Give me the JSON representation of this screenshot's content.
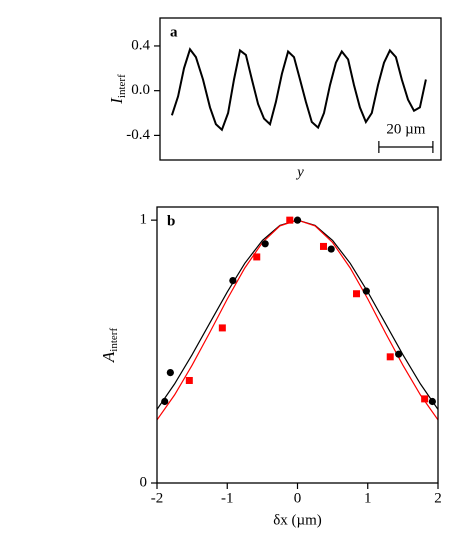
{
  "chart_data": [
    {
      "type": "line",
      "panel_label": "a",
      "xlabel": "y",
      "ylabel": {
        "text": "I",
        "subscript": "interf"
      },
      "xlim": [
        0,
        104
      ],
      "ylim": [
        -0.62,
        0.65
      ],
      "yticks": [
        0.4,
        {
          "value": 0,
          "label": "0.0"
        },
        -0.4
      ],
      "scale_bar": {
        "label": "20 µm",
        "x": [
          81,
          101
        ]
      },
      "series": [
        {
          "color": "#000000",
          "mode": "line",
          "x": [
            4.4,
            6.7,
            8.9,
            11.1,
            13.3,
            15.9,
            18.5,
            20.7,
            22.9,
            25.2,
            27.4,
            29.6,
            31.8,
            34.0,
            36.3,
            38.5,
            40.7,
            42.9,
            45.1,
            47.4,
            49.6,
            51.8,
            54.0,
            56.2,
            58.5,
            60.7,
            62.9,
            65.1,
            67.3,
            69.6,
            71.8,
            74.0,
            76.2,
            78.4,
            80.7,
            82.9,
            85.1,
            87.3,
            89.5,
            91.8,
            94.0,
            96.2,
            98.4
          ],
          "values": [
            -0.22,
            -0.05,
            0.2,
            0.37,
            0.3,
            0.1,
            -0.15,
            -0.3,
            -0.35,
            -0.2,
            0.1,
            0.36,
            0.32,
            0.1,
            -0.12,
            -0.25,
            -0.3,
            -0.1,
            0.15,
            0.35,
            0.3,
            0.1,
            -0.1,
            -0.28,
            -0.33,
            -0.2,
            0.05,
            0.25,
            0.35,
            0.28,
            0.05,
            -0.15,
            -0.28,
            -0.2,
            0.05,
            0.25,
            0.36,
            0.3,
            0.1,
            -0.08,
            -0.18,
            -0.15,
            0.1
          ]
        }
      ]
    },
    {
      "type": "scatter",
      "panel_label": "b",
      "xlabel": "δx (µm)",
      "ylabel": {
        "text": "A",
        "subscript": "interf"
      },
      "xlim": [
        -2,
        2
      ],
      "ylim": [
        0,
        1.05
      ],
      "xticks": [
        -2,
        -1,
        0,
        1,
        2
      ],
      "yticks": [
        0,
        1
      ],
      "series": [
        {
          "color": "#000000",
          "mode": "markers",
          "marker": "circle",
          "x": [
            -1.89,
            -1.81,
            -0.92,
            -0.46,
            0,
            0.48,
            0.98,
            1.44,
            1.92
          ],
          "values": [
            0.31,
            0.42,
            0.77,
            0.91,
            1.0,
            0.89,
            0.73,
            0.49,
            0.31
          ]
        },
        {
          "color": "#ff0000",
          "mode": "markers",
          "marker": "square",
          "x": [
            -1.54,
            -1.07,
            -0.58,
            -0.11,
            0.37,
            0.84,
            1.32,
            1.81
          ],
          "values": [
            0.39,
            0.59,
            0.86,
            1.0,
            0.9,
            0.72,
            0.48,
            0.32
          ]
        },
        {
          "color": "#000000",
          "mode": "line",
          "x": [
            -2,
            -1.75,
            -1.5,
            -1.25,
            -1,
            -0.75,
            -0.5,
            -0.25,
            0,
            0.25,
            0.5,
            0.75,
            1,
            1.25,
            1.5,
            1.75,
            2
          ],
          "values": [
            0.28,
            0.377,
            0.488,
            0.608,
            0.727,
            0.836,
            0.923,
            0.98,
            1,
            0.98,
            0.923,
            0.836,
            0.727,
            0.608,
            0.488,
            0.377,
            0.28
          ]
        },
        {
          "color": "#ff0000",
          "mode": "line",
          "x": [
            -2,
            -1.75,
            -1.5,
            -1.25,
            -1,
            -0.75,
            -0.5,
            -0.25,
            0,
            0.25,
            0.5,
            0.75,
            1,
            1.25,
            1.5,
            1.75,
            2
          ],
          "values": [
            0.24,
            0.335,
            0.448,
            0.572,
            0.7,
            0.818,
            0.915,
            0.978,
            1,
            0.978,
            0.915,
            0.818,
            0.7,
            0.572,
            0.448,
            0.335,
            0.24
          ]
        }
      ]
    }
  ]
}
